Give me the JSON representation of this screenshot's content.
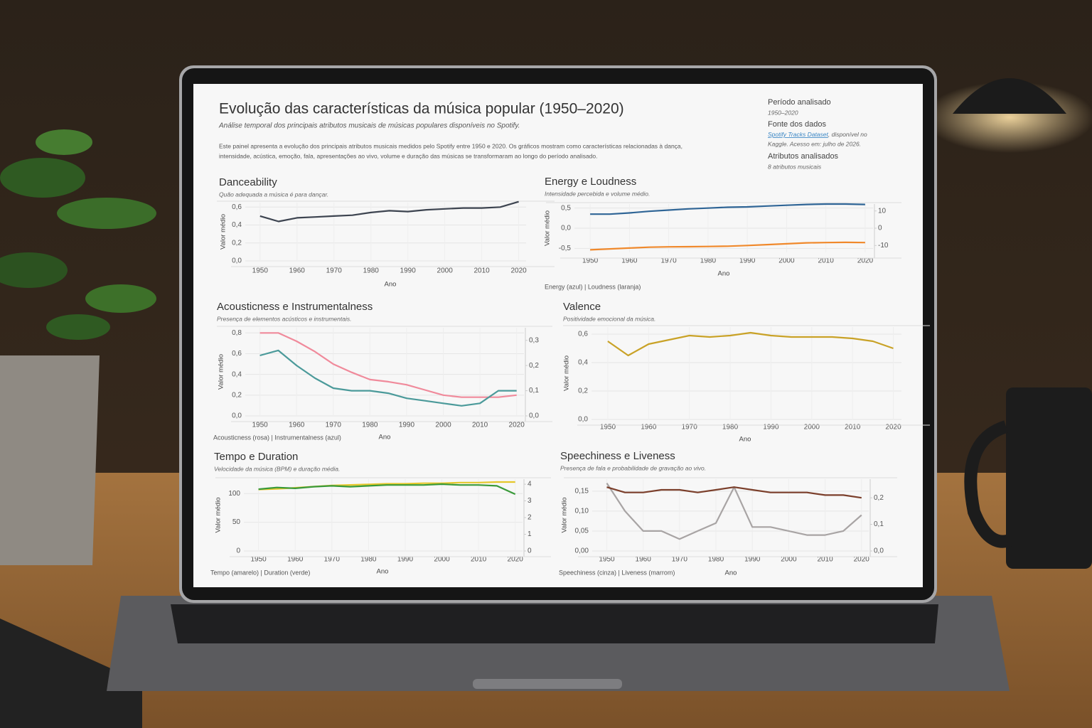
{
  "header": {
    "title": "Evolução das características da música popular (1950–2020)",
    "subtitle": "Análise temporal dos principais atributos musicais de músicas populares disponíveis no Spotify.",
    "description": [
      "Este painel apresenta a evolução dos principais atributos musicais medidos pelo Spotify entre 1950 e 2020. Os gráficos mostram como características relacionadas à dança,",
      "intensidade, acústica, emoção, fala, apresentações ao vivo, volume e duração das músicas se transformaram ao longo do período analisado."
    ]
  },
  "sidebar": {
    "period_label": "Período analisado",
    "period": "1950–2020",
    "source_label": "Fonte dos dados",
    "source_link": "Spotify Tracks Dataset",
    "source_note": [
      ", disponível no",
      "Kaggle. Acesso em: julho de 2026."
    ],
    "attributes_label": "Atributos analisados",
    "attributes": "8 atributos musicais"
  },
  "chart_data": [
    {
      "type": "line",
      "title": "Danceability",
      "subtitle": "Quão adequada a música é para dançar.",
      "ylabel": "Valor médio",
      "xlabel": "Ano",
      "x": [
        1950,
        1955,
        1960,
        1965,
        1970,
        1975,
        1980,
        1985,
        1990,
        1995,
        2000,
        2005,
        2010,
        2015,
        2020
      ],
      "xlim": [
        1946,
        2022
      ],
      "xticks": [
        1950,
        1960,
        1970,
        1980,
        1990,
        2000,
        2010,
        2020
      ],
      "ylim": [
        0,
        0.65
      ],
      "yticks": [
        {
          "value": 0,
          "label": "0,0"
        },
        {
          "value": 0.2,
          "label": "0,2"
        },
        {
          "value": 0.4,
          "label": "0,4"
        },
        {
          "value": 0.6,
          "label": "0,6"
        }
      ],
      "grid": true,
      "series": [
        {
          "color": "#3d4450",
          "values": [
            0.5,
            0.44,
            0.48,
            0.49,
            0.5,
            0.51,
            0.54,
            0.56,
            0.55,
            0.57,
            0.58,
            0.59,
            0.59,
            0.6,
            0.66
          ]
        }
      ]
    },
    {
      "type": "line",
      "title": "Energy e Loudness",
      "subtitle": "Intensidade percebida e volume médio.",
      "ylabel": "Valor médio",
      "xlabel": "Ano",
      "caption": "Energy (azul) | Loudness (laranja)",
      "x": [
        1950,
        1955,
        1960,
        1965,
        1970,
        1975,
        1980,
        1985,
        1990,
        1995,
        2000,
        2005,
        2010,
        2015,
        2020
      ],
      "xlim": [
        1946,
        2022
      ],
      "xticks": [
        1950,
        1960,
        1970,
        1980,
        1990,
        2000,
        2010,
        2020
      ],
      "ylim": [
        -0.6,
        0.6
      ],
      "yticks": [
        {
          "value": -0.5,
          "label": "-0,5"
        },
        {
          "value": 0,
          "label": "0,0"
        },
        {
          "value": 0.5,
          "label": "0,5"
        }
      ],
      "y2lim": [
        -14,
        14
      ],
      "y2ticks": [
        -10,
        0,
        10
      ],
      "grid": true,
      "series": [
        {
          "color": "#2f6596",
          "values": [
            0.35,
            0.35,
            0.38,
            0.42,
            0.45,
            0.48,
            0.5,
            0.52,
            0.53,
            0.55,
            0.57,
            0.59,
            0.6,
            0.6,
            0.59
          ]
        },
        {
          "color": "#f0892c",
          "axis": "y2",
          "values": [
            -12.5,
            -12,
            -11.5,
            -11,
            -10.8,
            -10.7,
            -10.6,
            -10.4,
            -10,
            -9.5,
            -9,
            -8.5,
            -8.3,
            -8.2,
            -8.3
          ]
        }
      ]
    },
    {
      "type": "line",
      "title": "Acousticness e Instrumentalness",
      "subtitle": "Presença de elementos acústicos e instrumentais.",
      "ylabel": "Valor médio",
      "xlabel": "Ano",
      "caption": "Acousticness (rosa) | Instrumentalness (azul)",
      "x": [
        1950,
        1955,
        1960,
        1965,
        1970,
        1975,
        1980,
        1985,
        1990,
        1995,
        2000,
        2005,
        2010,
        2015,
        2020
      ],
      "xlim": [
        1946,
        2022
      ],
      "xticks": [
        1950,
        1960,
        1970,
        1980,
        1990,
        2000,
        2010,
        2020
      ],
      "ylim": [
        0,
        0.85
      ],
      "yticks": [
        {
          "value": 0,
          "label": "0,0"
        },
        {
          "value": 0.2,
          "label": "0,2"
        },
        {
          "value": 0.4,
          "label": "0,4"
        },
        {
          "value": 0.6,
          "label": "0,6"
        },
        {
          "value": 0.8,
          "label": "0,8"
        }
      ],
      "y2lim": [
        0,
        0.35
      ],
      "y2ticks": [
        {
          "value": 0,
          "label": "0,0"
        },
        {
          "value": 0.1,
          "label": "0,1"
        },
        {
          "value": 0.2,
          "label": "0,2"
        },
        {
          "value": 0.3,
          "label": "0,3"
        }
      ],
      "grid": true,
      "series": [
        {
          "color": "#f08a9b",
          "values": [
            0.8,
            0.8,
            0.72,
            0.62,
            0.5,
            0.42,
            0.35,
            0.33,
            0.3,
            0.25,
            0.2,
            0.18,
            0.18,
            0.18,
            0.2
          ]
        },
        {
          "color": "#4b9a9a",
          "axis": "y2",
          "values": [
            0.24,
            0.26,
            0.2,
            0.15,
            0.11,
            0.1,
            0.1,
            0.09,
            0.07,
            0.06,
            0.05,
            0.04,
            0.05,
            0.1,
            0.1
          ]
        }
      ]
    },
    {
      "type": "line",
      "title": "Valence",
      "subtitle": "Positividade emocional da música.",
      "ylabel": "Valor médio",
      "xlabel": "Ano",
      "x": [
        1950,
        1955,
        1960,
        1965,
        1970,
        1975,
        1980,
        1985,
        1990,
        1995,
        2000,
        2005,
        2010,
        2015,
        2020
      ],
      "xlim": [
        1946,
        2022
      ],
      "xticks": [
        1950,
        1960,
        1970,
        1980,
        1990,
        2000,
        2010,
        2020
      ],
      "ylim": [
        0,
        0.65
      ],
      "yticks": [
        {
          "value": 0,
          "label": "0,0"
        },
        {
          "value": 0.2,
          "label": "0,2"
        },
        {
          "value": 0.4,
          "label": "0,4"
        },
        {
          "value": 0.6,
          "label": "0,6"
        }
      ],
      "grid": true,
      "series": [
        {
          "color": "#c9a227",
          "values": [
            0.55,
            0.45,
            0.53,
            0.56,
            0.59,
            0.58,
            0.59,
            0.61,
            0.59,
            0.58,
            0.58,
            0.58,
            0.57,
            0.55,
            0.5
          ]
        }
      ]
    },
    {
      "type": "line",
      "title": "Tempo e Duration",
      "subtitle": "Velocidade da música (BPM) e duração média.",
      "ylabel": "Valor médio",
      "xlabel": "Ano",
      "caption": "Tempo (amarelo) | Duration (verde)",
      "x": [
        1950,
        1955,
        1960,
        1965,
        1970,
        1975,
        1980,
        1985,
        1990,
        1995,
        2000,
        2005,
        2010,
        2015,
        2020
      ],
      "xlim": [
        1946,
        2022
      ],
      "xticks": [
        1950,
        1960,
        1970,
        1980,
        1990,
        2000,
        2010,
        2020
      ],
      "ylim": [
        0,
        125
      ],
      "yticks": [
        0,
        50,
        100
      ],
      "y2lim": [
        0,
        4.3
      ],
      "y2ticks": [
        0,
        1,
        2,
        3,
        4
      ],
      "grid": true,
      "series": [
        {
          "color": "#e5c72b",
          "values": [
            107,
            108,
            110,
            112,
            114,
            115,
            116,
            117,
            117,
            118,
            118,
            119,
            119,
            120,
            120
          ]
        },
        {
          "color": "#3a9a3a",
          "axis": "y2",
          "values": [
            3.7,
            3.8,
            3.75,
            3.85,
            3.9,
            3.85,
            3.9,
            3.95,
            3.95,
            3.95,
            4.0,
            3.95,
            3.95,
            3.9,
            3.4
          ]
        }
      ]
    },
    {
      "type": "line",
      "title": "Speechiness e Liveness",
      "subtitle": "Presença de fala e probabilidade de gravação ao vivo.",
      "ylabel": "Valor médio",
      "xlabel": "Ano",
      "caption": "Speechiness (cinza) | Liveness (marrom)",
      "x": [
        1950,
        1955,
        1960,
        1965,
        1970,
        1975,
        1980,
        1985,
        1990,
        1995,
        2000,
        2005,
        2010,
        2015,
        2020
      ],
      "xlim": [
        1946,
        2022
      ],
      "xticks": [
        1950,
        1960,
        1970,
        1980,
        1990,
        2000,
        2010,
        2020
      ],
      "ylim": [
        0,
        0.18
      ],
      "yticks": [
        {
          "value": 0,
          "label": "0,00"
        },
        {
          "value": 0.05,
          "label": "0,05"
        },
        {
          "value": 0.1,
          "label": "0,10"
        },
        {
          "value": 0.15,
          "label": "0,15"
        }
      ],
      "y2lim": [
        0,
        0.27
      ],
      "y2ticks": [
        {
          "value": 0,
          "label": "0,0"
        },
        {
          "value": 0.1,
          "label": "0,1"
        },
        {
          "value": 0.2,
          "label": "0,2"
        }
      ],
      "grid": true,
      "series": [
        {
          "color": "#a8a4a4",
          "values": [
            0.17,
            0.1,
            0.05,
            0.05,
            0.03,
            0.05,
            0.07,
            0.16,
            0.06,
            0.06,
            0.05,
            0.04,
            0.04,
            0.05,
            0.09
          ]
        },
        {
          "color": "#7b3f2b",
          "axis": "y2",
          "values": [
            0.24,
            0.22,
            0.22,
            0.23,
            0.23,
            0.22,
            0.23,
            0.24,
            0.23,
            0.22,
            0.22,
            0.22,
            0.21,
            0.21,
            0.2
          ]
        }
      ]
    }
  ]
}
